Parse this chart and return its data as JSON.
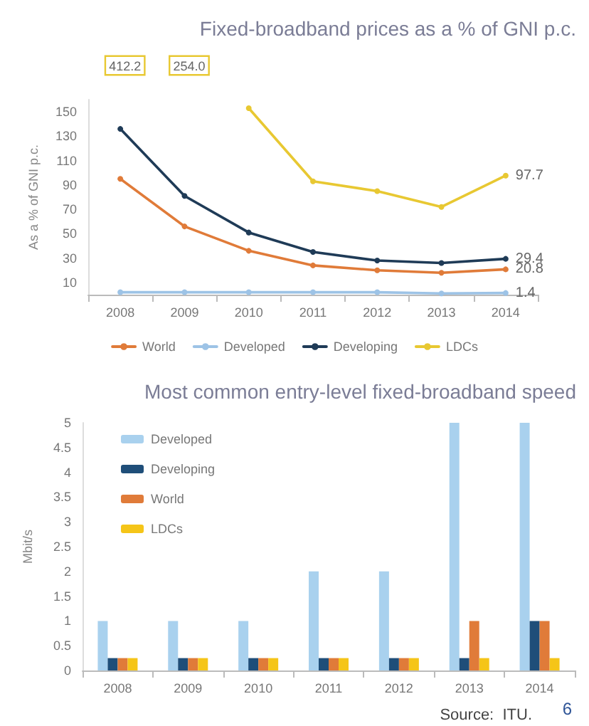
{
  "chart_data": [
    {
      "type": "line",
      "title": "Fixed-broadband prices as a % of GNI p.c.",
      "ylabel": "As a % of GNI p.c.",
      "categories": [
        "2008",
        "2009",
        "2010",
        "2011",
        "2012",
        "2013",
        "2014"
      ],
      "series": [
        {
          "name": "World",
          "color": "#e07b39",
          "values": [
            95,
            56,
            36,
            24,
            20,
            18,
            20.8
          ],
          "value_labels": [
            null,
            null,
            null,
            null,
            null,
            null,
            "20.8"
          ]
        },
        {
          "name": "Developed",
          "color": "#9dc3e6",
          "values": [
            2,
            2,
            2,
            2,
            2,
            1,
            1.4
          ],
          "value_labels": [
            null,
            null,
            null,
            null,
            null,
            null,
            "1.4"
          ]
        },
        {
          "name": "Developing",
          "color": "#1f3b57",
          "values": [
            136,
            81,
            51,
            35,
            28,
            26,
            29.4
          ],
          "value_labels": [
            null,
            null,
            null,
            null,
            null,
            null,
            "29.4"
          ]
        },
        {
          "name": "LDCs",
          "color": "#e8c832",
          "values": [
            null,
            null,
            153,
            93,
            85,
            72,
            97.7
          ],
          "value_labels": [
            null,
            null,
            null,
            null,
            null,
            null,
            "97.7"
          ]
        }
      ],
      "annotations": [
        "412.2",
        "254.0"
      ],
      "ylim": [
        0,
        160
      ],
      "yticks": [
        10,
        30,
        50,
        70,
        90,
        110,
        130,
        150
      ],
      "grid": false,
      "legend": "bottom",
      "marker": "circle",
      "line_style": "solid"
    },
    {
      "type": "bar",
      "title": "Most common entry-level fixed-broadband speed",
      "ylabel": "Mbit/s",
      "categories": [
        "2008",
        "2009",
        "2010",
        "2011",
        "2012",
        "2013",
        "2014"
      ],
      "series": [
        {
          "name": "Developed",
          "color": "#a9d1ee",
          "values": [
            1,
            1,
            1,
            2,
            2,
            5,
            5
          ]
        },
        {
          "name": "Developing",
          "color": "#1f4e79",
          "values": [
            0.25,
            0.25,
            0.25,
            0.25,
            0.25,
            0.25,
            1
          ]
        },
        {
          "name": "World",
          "color": "#e07b39",
          "values": [
            0.25,
            0.25,
            0.25,
            0.25,
            0.25,
            1,
            1
          ]
        },
        {
          "name": "LDCs",
          "color": "#f5c518",
          "values": [
            0.25,
            0.25,
            0.25,
            0.25,
            0.25,
            0.25,
            0.25
          ]
        }
      ],
      "annotations": [
        "Source:  ITU.",
        "6"
      ],
      "ylim": [
        0,
        5
      ],
      "yticks": [
        0,
        0.5,
        1,
        1.5,
        2,
        2.5,
        3,
        3.5,
        4,
        4.5,
        5
      ],
      "grid": false,
      "legend": "top left"
    }
  ]
}
